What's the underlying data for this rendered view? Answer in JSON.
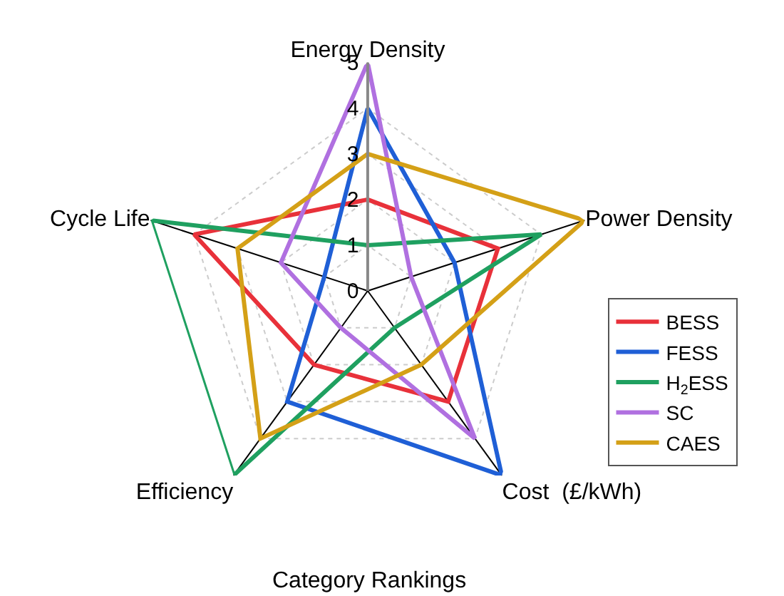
{
  "chart_data": {
    "type": "radar",
    "xlabel": "Category Rankings",
    "categories": [
      "Energy Density",
      "Power Density",
      "Cost  (£/kWh)",
      "Efficiency",
      "Cycle Life"
    ],
    "ylim": [
      0,
      5
    ],
    "yticks": [
      0,
      1,
      2,
      3,
      4,
      5
    ],
    "grid": true,
    "legend": "right",
    "marker": "none",
    "line_style": "solid",
    "series": [
      {
        "name": "BESS",
        "color": "#e8313a",
        "values": [
          2,
          3,
          3,
          2,
          4
        ]
      },
      {
        "name": "FESS",
        "color": "#1f5fd6",
        "values": [
          4,
          2,
          5,
          3,
          1
        ]
      },
      {
        "name": "H$_{2}$ESS",
        "color": "#1fa060",
        "values": [
          1,
          4,
          1,
          5,
          5
        ]
      },
      {
        "name": "SC",
        "color": "#b070e0",
        "values": [
          5,
          1,
          4,
          1,
          2
        ]
      },
      {
        "name": "CAES",
        "color": "#d4a017",
        "values": [
          3,
          5,
          2,
          4,
          3
        ]
      }
    ]
  }
}
